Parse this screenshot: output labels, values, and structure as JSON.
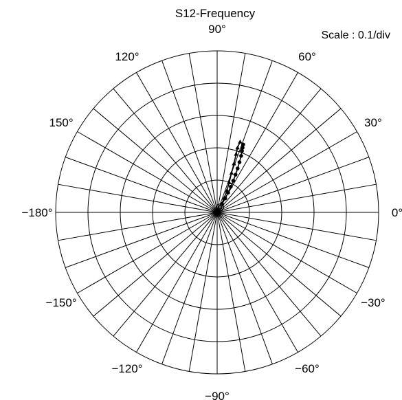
{
  "chart_data": {
    "type": "scatter",
    "coordinate_system": "polar",
    "title": "S12-Frequency",
    "scale_label": "Scale : 0.1/div",
    "radial_max": 0.5,
    "angle_labels": [
      "0°",
      "30°",
      "60°",
      "90°",
      "120°",
      "150°",
      "−180°",
      "−150°",
      "−120°",
      "−90°",
      "−60°",
      "−30°"
    ],
    "grid": true,
    "series": [
      {
        "marker": "filled-circle",
        "points": [
          {
            "angle": 60,
            "magnitude": 0.03
          },
          {
            "angle": 60,
            "magnitude": 0.05
          },
          {
            "angle": 61,
            "magnitude": 0.07
          },
          {
            "angle": 62,
            "magnitude": 0.09
          },
          {
            "angle": 63,
            "magnitude": 0.11
          },
          {
            "angle": 64,
            "magnitude": 0.13
          },
          {
            "angle": 65,
            "magnitude": 0.15
          },
          {
            "angle": 66,
            "magnitude": 0.17
          },
          {
            "angle": 67,
            "magnitude": 0.19
          },
          {
            "angle": 68,
            "magnitude": 0.205
          },
          {
            "angle": 68.5,
            "magnitude": 0.215
          },
          {
            "angle": 69,
            "magnitude": 0.225
          }
        ]
      },
      {
        "marker": "filled-triangle",
        "points": [
          {
            "angle": 62,
            "magnitude": 0.03
          },
          {
            "angle": 64,
            "magnitude": 0.05
          },
          {
            "angle": 66,
            "magnitude": 0.075
          },
          {
            "angle": 68,
            "magnitude": 0.1
          },
          {
            "angle": 70,
            "magnitude": 0.13
          },
          {
            "angle": 71,
            "magnitude": 0.16
          },
          {
            "angle": 72,
            "magnitude": 0.19
          },
          {
            "angle": 72.5,
            "magnitude": 0.21
          },
          {
            "angle": 72,
            "magnitude": 0.23
          }
        ]
      }
    ],
    "start_marker": {
      "angle": 60,
      "magnitude": 0.018
    }
  }
}
